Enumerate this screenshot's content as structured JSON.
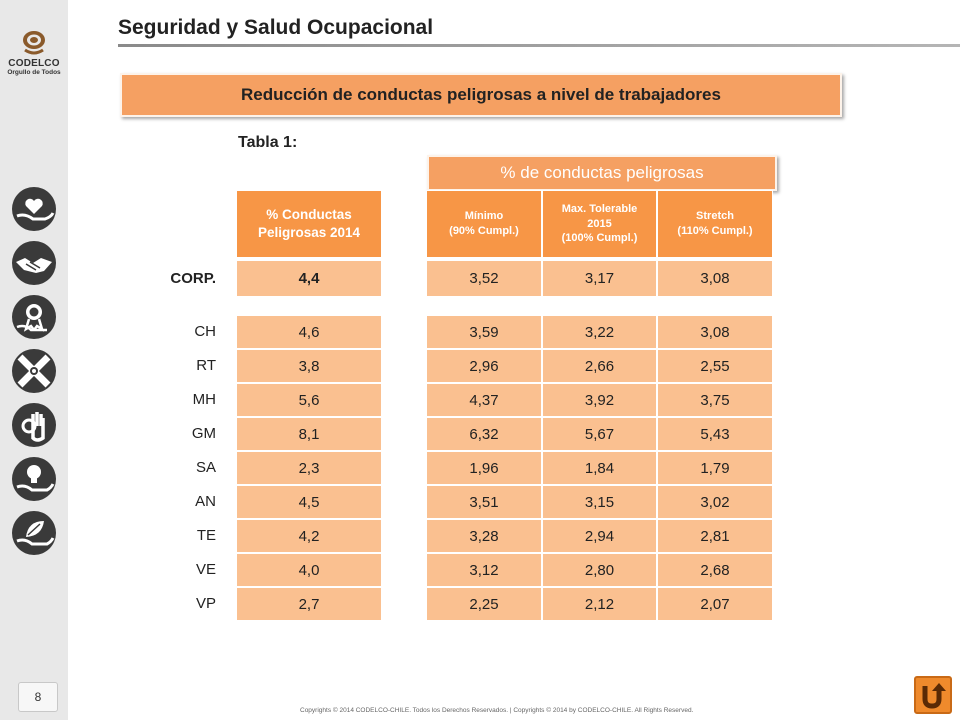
{
  "header": {
    "title": "Seguridad y Salud Ocupacional",
    "banner": "Reducción de conductas peligrosas a nivel de trabajadores"
  },
  "logo": {
    "name": "CODELCO",
    "slogan": "Orgullo de Todos"
  },
  "rail_icons": [
    "heart-in-hand-icon",
    "handshake-icon",
    "medal-icon",
    "crossed-hands-icon",
    "ok-gesture-icon",
    "lightbulb-in-hand-icon",
    "leaf-in-hand-icon"
  ],
  "page_number": "8",
  "table_label": "Tabla 1:",
  "targets_banner": "% de conductas peligrosas",
  "columns": {
    "current": [
      "% Conductas",
      "Peligrosas 2014"
    ],
    "minimo": [
      "Mínimo",
      "(90% Cumpl.)"
    ],
    "max": [
      "Max. Tolerable",
      "2015",
      "(100% Cumpl.)"
    ],
    "stretch": [
      "Stretch",
      "(110% Cumpl.)"
    ]
  },
  "corp_row": {
    "label": "CORP.",
    "current": "4,4",
    "minimo": "3,52",
    "max": "3,17",
    "stretch": "3,08"
  },
  "rows": [
    {
      "label": "CH",
      "current": "4,6",
      "minimo": "3,59",
      "max": "3,22",
      "stretch": "3,08"
    },
    {
      "label": "RT",
      "current": "3,8",
      "minimo": "2,96",
      "max": "2,66",
      "stretch": "2,55"
    },
    {
      "label": "MH",
      "current": "5,6",
      "minimo": "4,37",
      "max": "3,92",
      "stretch": "3,75"
    },
    {
      "label": "GM",
      "current": "8,1",
      "minimo": "6,32",
      "max": "5,67",
      "stretch": "5,43"
    },
    {
      "label": "SA",
      "current": "2,3",
      "minimo": "1,96",
      "max": "1,84",
      "stretch": "1,79"
    },
    {
      "label": "AN",
      "current": "4,5",
      "minimo": "3,51",
      "max": "3,15",
      "stretch": "3,02"
    },
    {
      "label": "TE",
      "current": "4,2",
      "minimo": "3,28",
      "max": "2,94",
      "stretch": "2,81"
    },
    {
      "label": "VE",
      "current": "4,0",
      "minimo": "3,12",
      "max": "2,80",
      "stretch": "2,68"
    },
    {
      "label": "VP",
      "current": "2,7",
      "minimo": "2,25",
      "max": "2,12",
      "stretch": "2,07"
    }
  ],
  "footer": "Copyrights © 2014 CODELCO-CHILE. Todos los Derechos Reservados. | Copyrights © 2014 by CODELCO-CHILE. All Rights Reserved.",
  "colors": {
    "header_orange": "#f79646",
    "cell_orange": "#fac090",
    "banner_orange": "#f5a062",
    "rail_gray": "#e8e8e8"
  }
}
